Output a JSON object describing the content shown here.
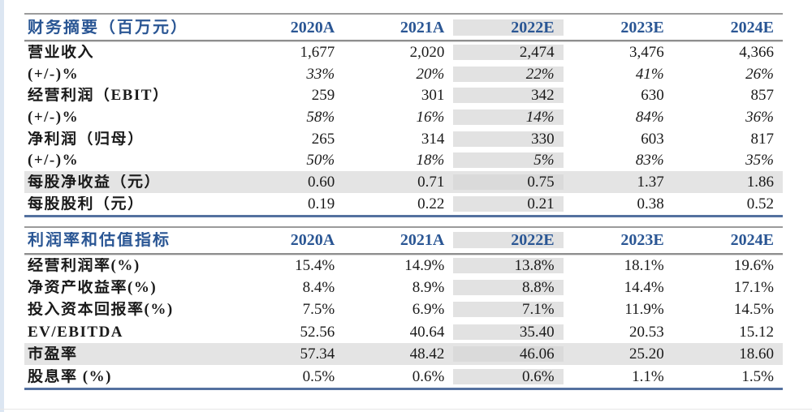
{
  "colors": {
    "header_blue": "#2a5694",
    "table_bottom_blue": "#54719f",
    "gray_line": "#8e8e8e",
    "estimate_column_gray": "#e2e2e2",
    "highlight_row_gray": "#e4e4e4"
  },
  "tables": [
    {
      "title": "财务摘要（百万元）",
      "columns": [
        "2020A",
        "2021A",
        "2022E",
        "2023E",
        "2024E"
      ],
      "rows": [
        {
          "label": "营业收入",
          "italic": false,
          "highlight": false,
          "values": [
            "1,677",
            "2,020",
            "2,474",
            "3,476",
            "4,366"
          ]
        },
        {
          "label": "(+/-)%",
          "italic": true,
          "highlight": false,
          "values": [
            "33%",
            "20%",
            "22%",
            "41%",
            "26%"
          ]
        },
        {
          "label": "经营利润（EBIT）",
          "italic": false,
          "highlight": false,
          "values": [
            "259",
            "301",
            "342",
            "630",
            "857"
          ]
        },
        {
          "label": "(+/-)%",
          "italic": true,
          "highlight": false,
          "values": [
            "58%",
            "16%",
            "14%",
            "84%",
            "36%"
          ]
        },
        {
          "label": "净利润（归母）",
          "italic": false,
          "highlight": false,
          "values": [
            "265",
            "314",
            "330",
            "603",
            "817"
          ]
        },
        {
          "label": "(+/-)%",
          "italic": true,
          "highlight": false,
          "values": [
            "50%",
            "18%",
            "5%",
            "83%",
            "35%"
          ]
        },
        {
          "label": "每股净收益（元）",
          "italic": false,
          "highlight": true,
          "values": [
            "0.60",
            "0.71",
            "0.75",
            "1.37",
            "1.86"
          ]
        },
        {
          "label": "每股股利（元）",
          "italic": false,
          "highlight": false,
          "values": [
            "0.19",
            "0.22",
            "0.21",
            "0.38",
            "0.52"
          ]
        }
      ]
    },
    {
      "title": "利润率和估值指标",
      "columns": [
        "2020A",
        "2021A",
        "2022E",
        "2023E",
        "2024E"
      ],
      "rows": [
        {
          "label": "经营利润率(%)",
          "italic": false,
          "highlight": false,
          "values": [
            "15.4%",
            "14.9%",
            "13.8%",
            "18.1%",
            "19.6%"
          ]
        },
        {
          "label": "净资产收益率(%)",
          "italic": false,
          "highlight": false,
          "values": [
            "8.4%",
            "8.9%",
            "8.8%",
            "14.4%",
            "17.1%"
          ]
        },
        {
          "label": "投入资本回报率(%)",
          "italic": false,
          "highlight": false,
          "values": [
            "7.5%",
            "6.9%",
            "7.1%",
            "11.9%",
            "14.5%"
          ]
        },
        {
          "label": "EV/EBITDA",
          "italic": false,
          "highlight": false,
          "values": [
            "52.56",
            "40.64",
            "35.40",
            "20.53",
            "15.12"
          ]
        },
        {
          "label": "市盈率",
          "italic": false,
          "highlight": true,
          "values": [
            "57.34",
            "48.42",
            "46.06",
            "25.20",
            "18.60"
          ]
        },
        {
          "label": "股息率 (%)",
          "italic": false,
          "highlight": false,
          "values": [
            "0.5%",
            "0.6%",
            "0.6%",
            "1.1%",
            "1.5%"
          ]
        }
      ]
    }
  ]
}
